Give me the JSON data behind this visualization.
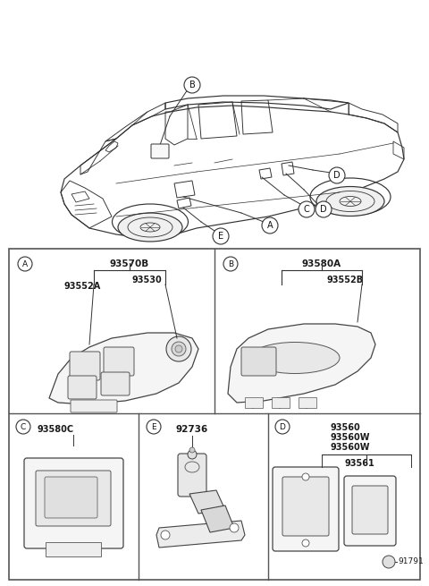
{
  "bg_color": "#ffffff",
  "border_color": "#555555",
  "text_color": "#1a1a1a",
  "grid_color": "#777777",
  "lw_main": 0.9,
  "lw_thin": 0.6,
  "panel_A_parts": {
    "label": "A",
    "part1": "93570B",
    "part2": "93530",
    "part3": "93552A"
  },
  "panel_B_parts": {
    "label": "B",
    "part1": "93580A",
    "part2": "93552B"
  },
  "panel_C_parts": {
    "label": "C",
    "part1": "93580C"
  },
  "panel_E_parts": {
    "label": "E",
    "part1": "92736"
  },
  "panel_D_parts": {
    "label": "D",
    "part1": "93560",
    "part2": "93560W",
    "part3": "93560W",
    "part4": "93561",
    "part5": "91791"
  },
  "car_callouts": [
    "B",
    "A",
    "D",
    "C",
    "E"
  ]
}
